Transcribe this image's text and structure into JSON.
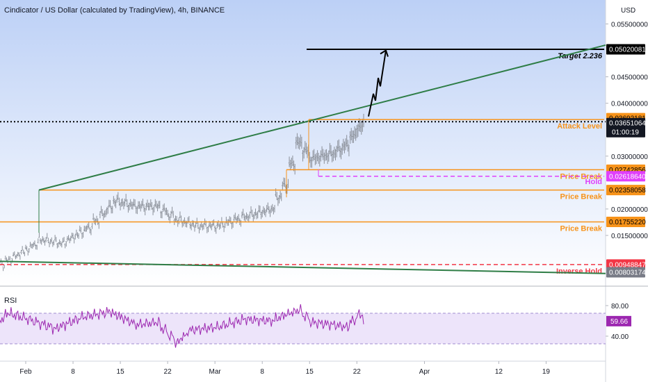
{
  "chart_data": {
    "type": "candlestick",
    "title": "Cindicator / US Dollar (calculated by TradingView), 4h, BINANCE",
    "currency_label": "USD",
    "price_ticks": [
      "0.05500000",
      "0.04500000",
      "0.04000000",
      "0.03000000",
      "0.02000000",
      "0.01500000"
    ],
    "price_tick_values": [
      0.055,
      0.045,
      0.04,
      0.03,
      0.02,
      0.015
    ],
    "date_ticks": [
      "Feb",
      "8",
      "15",
      "22",
      "Mar",
      "8",
      "15",
      "22",
      "Apr",
      "12",
      "19"
    ],
    "date_tick_values": [
      "2021-02-01",
      "2021-02-08",
      "2021-02-15",
      "2021-02-22",
      "2021-03-01",
      "2021-03-08",
      "2021-03-15",
      "2021-03-22",
      "2021-04-01",
      "2021-04-12",
      "2021-04-19"
    ],
    "price_key_points": [
      {
        "date": "2021-01-27",
        "price": 0.0088
      },
      {
        "date": "2021-02-01",
        "price": 0.0125
      },
      {
        "date": "2021-02-03",
        "price": 0.0142
      },
      {
        "date": "2021-02-06",
        "price": 0.0135
      },
      {
        "date": "2021-02-10",
        "price": 0.0165
      },
      {
        "date": "2021-02-14",
        "price": 0.0215
      },
      {
        "date": "2021-02-17",
        "price": 0.0205
      },
      {
        "date": "2021-02-20",
        "price": 0.0205
      },
      {
        "date": "2021-02-23",
        "price": 0.018
      },
      {
        "date": "2021-02-26",
        "price": 0.0168
      },
      {
        "date": "2021-03-01",
        "price": 0.0168
      },
      {
        "date": "2021-03-05",
        "price": 0.0185
      },
      {
        "date": "2021-03-09",
        "price": 0.02
      },
      {
        "date": "2021-03-11",
        "price": 0.0245
      },
      {
        "date": "2021-03-13",
        "price": 0.0325
      },
      {
        "date": "2021-03-15",
        "price": 0.0295
      },
      {
        "date": "2021-03-18",
        "price": 0.0305
      },
      {
        "date": "2021-03-20",
        "price": 0.032
      },
      {
        "date": "2021-03-22",
        "price": 0.0355
      },
      {
        "date": "2021-03-23",
        "price": 0.0362
      }
    ],
    "levels": [
      {
        "name": "Target 2.236",
        "price": 0.05020081,
        "tag": "0.05020081",
        "color": "#000000",
        "style": "solid",
        "label_color": "#000000"
      },
      {
        "name": "Attack Level",
        "price": 0.03692181,
        "tag": "0.03692181",
        "color": "#f7931a",
        "style": "solid",
        "label_color": "#f7931a"
      },
      {
        "name": "Price Break",
        "price": 0.02742856,
        "tag": "0.02742856",
        "color": "#f7931a",
        "style": "solid",
        "label_color": "#f7931a"
      },
      {
        "name": "Hold",
        "price": 0.0261864,
        "tag": "0.02618640",
        "color": "#e040fb",
        "style": "dashed",
        "label_color": "#e040fb"
      },
      {
        "name": "Price Break",
        "price": 0.02358058,
        "tag": "0.02358058",
        "color": "#f7931a",
        "style": "solid",
        "label_color": "#f7931a"
      },
      {
        "name": "Price Break",
        "price": 0.0175522,
        "tag": "0.01755220",
        "color": "#f7931a",
        "style": "solid",
        "label_color": "#f7931a"
      },
      {
        "name": "Inverse Hold",
        "price": 0.00948847,
        "tag": "0.00948847",
        "color": "#f23645",
        "style": "dashed",
        "label_color": "#f23645"
      }
    ],
    "current_price_tag": "0.03651064",
    "current_price": 0.03651064,
    "countdown": "01:00:19",
    "low_tag": "0.00803174",
    "low_price": 0.00803174,
    "rsi": {
      "label": "RSI",
      "ticks": [
        "80.00",
        "40.00"
      ],
      "tick_values": [
        80,
        40
      ],
      "band_upper": 70,
      "band_lower": 30,
      "current_tag": "59.66",
      "current_value": 59.66,
      "key_points": [
        {
          "date": "2021-01-27",
          "value": 55
        },
        {
          "date": "2021-01-29",
          "value": 70
        },
        {
          "date": "2021-02-01",
          "value": 62
        },
        {
          "date": "2021-02-05",
          "value": 50
        },
        {
          "date": "2021-02-09",
          "value": 65
        },
        {
          "date": "2021-02-13",
          "value": 72
        },
        {
          "date": "2021-02-17",
          "value": 55
        },
        {
          "date": "2021-02-20",
          "value": 58
        },
        {
          "date": "2021-02-23",
          "value": 32
        },
        {
          "date": "2021-02-25",
          "value": 48
        },
        {
          "date": "2021-03-01",
          "value": 52
        },
        {
          "date": "2021-03-05",
          "value": 62
        },
        {
          "date": "2021-03-09",
          "value": 60
        },
        {
          "date": "2021-03-11",
          "value": 68
        },
        {
          "date": "2021-03-13",
          "value": 74
        },
        {
          "date": "2021-03-15",
          "value": 58
        },
        {
          "date": "2021-03-18",
          "value": 55
        },
        {
          "date": "2021-03-20",
          "value": 52
        },
        {
          "date": "2021-03-22",
          "value": 68
        },
        {
          "date": "2021-03-23",
          "value": 60
        }
      ]
    },
    "colors": {
      "trend_line": "#2e7d46",
      "price_bars": "#8a8f98",
      "rsi_line": "#9c27b0",
      "rsi_band": "#ede4fa",
      "current_price_tag": "#131722",
      "rsi_tag": "#9c27b0"
    }
  }
}
